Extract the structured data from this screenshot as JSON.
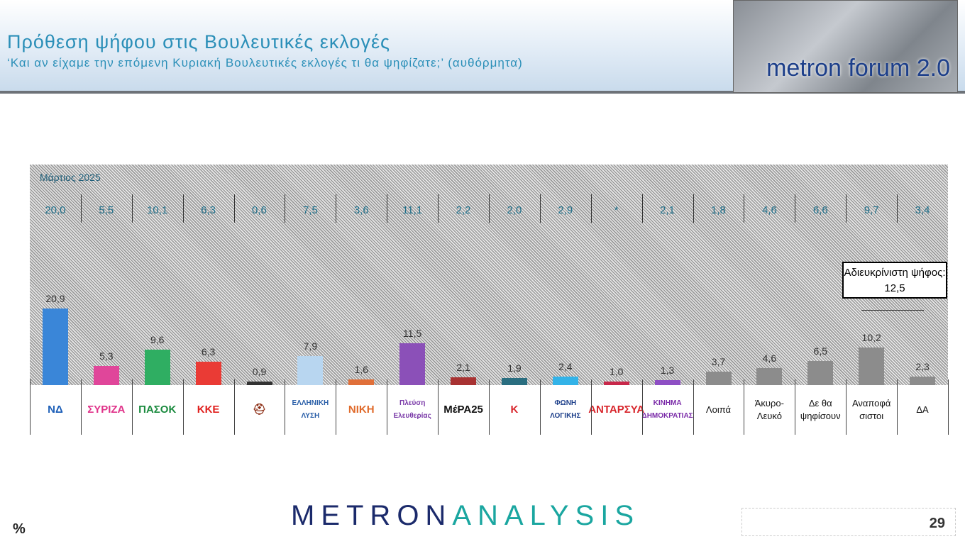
{
  "header": {
    "title": "Πρόθεση ψήφου στις Βουλευτικές εκλογές",
    "subtitle": "‘Και αν είχαμε την επόμενη Κυριακή Βουλευτικές εκλογές τι θα ψηφίζατε;’ (αυθόρμητα)",
    "forum_logo": "metron forum 2.0"
  },
  "chart_data": {
    "type": "bar",
    "previous_label": "Μάρτιος 2025",
    "categories": [
      "ΝΔ",
      "ΣΥΡΙΖΑ",
      "ΠΑΣΟΚ",
      "ΚΚΕ",
      "Σπαρτιάτες",
      "Ελληνική Λύση",
      "ΝΙΚΗ",
      "Πλεύση Ελευθερίας",
      "ΜέΡΑ25",
      "Κίνημα Δημοκρατίας (Κ)",
      "Φωνή Λογικής",
      "ΑΝΤΑΡΣΥΑ",
      "Κίνημα Δημοκρατίας",
      "Λοιπά",
      "Άκυρο-Λευκό",
      "Δε θα ψηφίσουν",
      "Αναποφάσιστοι",
      "ΔΑ"
    ],
    "logos": [
      "ΝΔ",
      "ΣΥΡΙΖΑ",
      "ΠΑΣΟΚ",
      "ΚΚΕ",
      "⛑",
      "ΕΛΛΗΝΙΚΗ ΛΥΣΗ",
      "ΝΙΚΗ",
      "Πλεύση Ελευθερίας",
      "ΜέΡΑ25",
      "K",
      "ΦΩΝΗ ΛΟΓΙΚΗΣ",
      "ΑΝΤΑΡΣΥΑ",
      "ΚΙΝΗΜΑ ΔΗΜΟΚΡΑΤΙΑΣ",
      "Λοιπά",
      "Άκυρο-Λευκό",
      "Δε θα ψηφίσουν",
      "Αναποφά σιστοι",
      "ΔΑ"
    ],
    "is_text_label": [
      false,
      false,
      false,
      false,
      false,
      false,
      false,
      false,
      false,
      false,
      false,
      false,
      false,
      true,
      true,
      true,
      true,
      true
    ],
    "values": [
      20.9,
      5.3,
      9.6,
      6.3,
      0.9,
      7.9,
      1.6,
      11.5,
      2.1,
      1.9,
      2.4,
      1.0,
      1.3,
      3.7,
      4.6,
      6.5,
      10.2,
      2.3
    ],
    "value_labels": [
      "20,9",
      "5,3",
      "9,6",
      "6,3",
      "0,9",
      "7,9",
      "1,6",
      "11,5",
      "2,1",
      "1,9",
      "2,4",
      "1,0",
      "1,3",
      "3,7",
      "4,6",
      "6,5",
      "10,2",
      "2,3"
    ],
    "previous_values": [
      "20,0",
      "5,5",
      "10,1",
      "6,3",
      "0,6",
      "7,5",
      "3,6",
      "11,1",
      "2,2",
      "2,0",
      "2,9",
      "*",
      "2,1",
      "1,8",
      "4,6",
      "6,6",
      "9,7",
      "3,4"
    ],
    "colors": [
      "#3a86d8",
      "#e0469a",
      "#2fae62",
      "#ea3b35",
      "#333333",
      "#b8d6f0",
      "#e0703a",
      "#8b50b8",
      "#a83232",
      "#2a6e80",
      "#33b3e8",
      "#c8284a",
      "#8e4fc4",
      "#8c8c8c",
      "#8c8c8c",
      "#8c8c8c",
      "#8c8c8c",
      "#8c8c8c"
    ],
    "logo_colors": [
      "#1d5fb8",
      "#e0338a",
      "#1a8a3e",
      "#e0201e",
      "#8a2a10",
      "#2a5fa8",
      "#e06a2a",
      "#7a3aa8",
      "#111111",
      "#d8262c",
      "#1d3f8a",
      "#d8262c",
      "#7a2aa8",
      "#111",
      "#111",
      "#111",
      "#111",
      "#111"
    ],
    "annotation": "Αδιευκρίνιστη ψήφος: 12,5",
    "ylim": [
      0,
      60
    ],
    "unit": "%"
  },
  "footer": {
    "brand_left": "METRON",
    "brand_right": "ANALYSIS",
    "unit": "%",
    "page": "29"
  }
}
